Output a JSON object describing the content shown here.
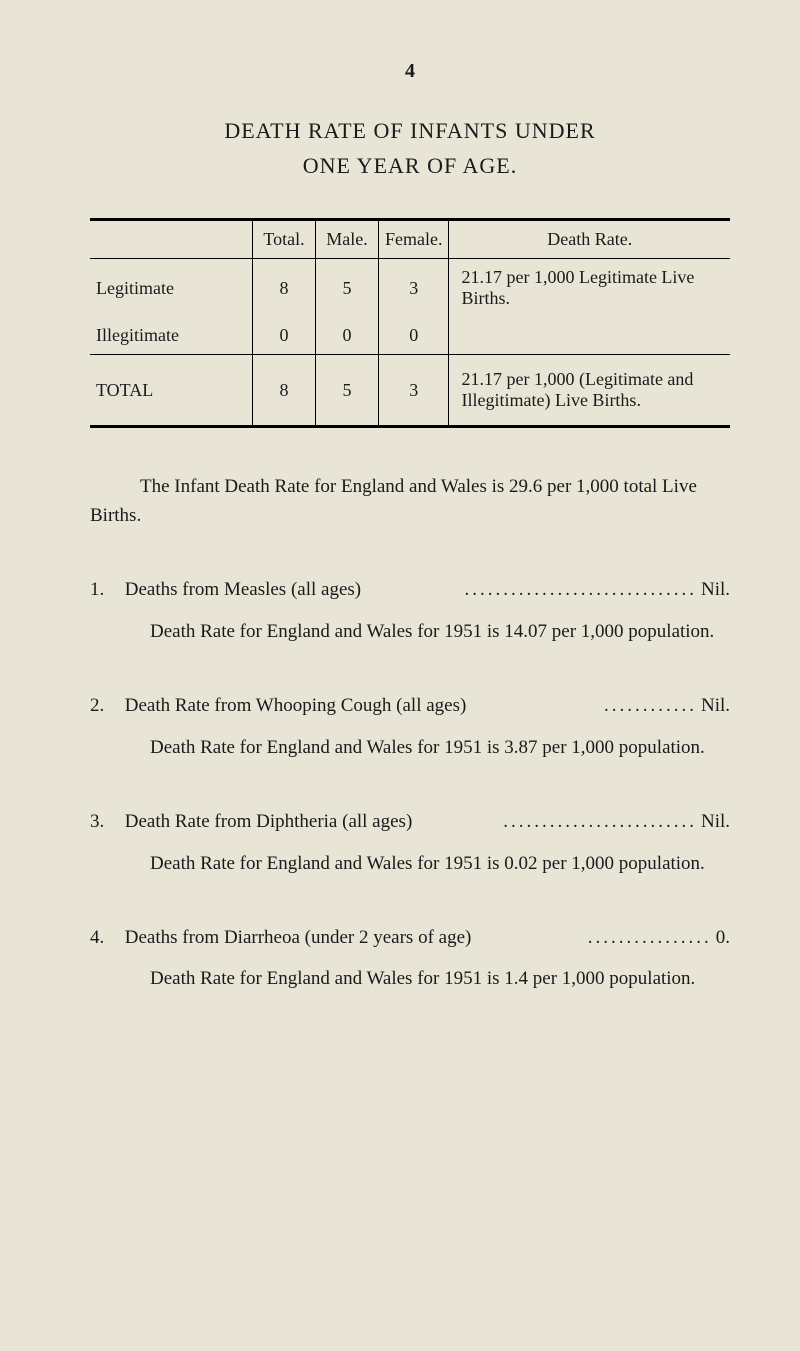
{
  "page_number": "4",
  "title_line1": "DEATH RATE OF INFANTS UNDER",
  "title_line2": "ONE YEAR OF AGE.",
  "table": {
    "headers": {
      "total": "Total.",
      "male": "Male.",
      "female": "Female.",
      "rate": "Death Rate."
    },
    "rows": [
      {
        "label": "Legitimate",
        "total": "8",
        "male": "5",
        "female": "3",
        "rate": "21.17 per 1,000 Legitimate Live Births."
      },
      {
        "label": "Illegitimate",
        "total": "0",
        "male": "0",
        "female": "0",
        "rate": ""
      }
    ],
    "total_row": {
      "label": "TOTAL",
      "total": "8",
      "male": "5",
      "female": "3",
      "rate": "21.17 per 1,000 (Legitimate and Illegitimate) Live Births."
    }
  },
  "body_para": "The Infant Death Rate for England and Wales is 29.6 per 1,000 total Live Births.",
  "items": [
    {
      "num": "1.",
      "line": "Deaths from Measles (all ages)",
      "dots": "..............................",
      "value": "Nil.",
      "sub": "Death Rate for England and Wales for 1951 is 14.07 per 1,000 population."
    },
    {
      "num": "2.",
      "line": "Death Rate from Whooping Cough (all ages)",
      "dots": "............",
      "value": "Nil.",
      "sub": "Death Rate for England and Wales for 1951 is 3.87 per 1,000 population."
    },
    {
      "num": "3.",
      "line": "Death Rate from Diphtheria (all ages)",
      "dots": ".........................",
      "value": "Nil.",
      "sub": "Death Rate for England and Wales for 1951 is 0.02 per 1,000 population."
    },
    {
      "num": "4.",
      "line": "Deaths from Diarrheoa (under 2 years of age)",
      "dots": "................",
      "value": "0.",
      "sub": "Death Rate for England and Wales for 1951 is 1.4 per 1,000 population."
    }
  ]
}
